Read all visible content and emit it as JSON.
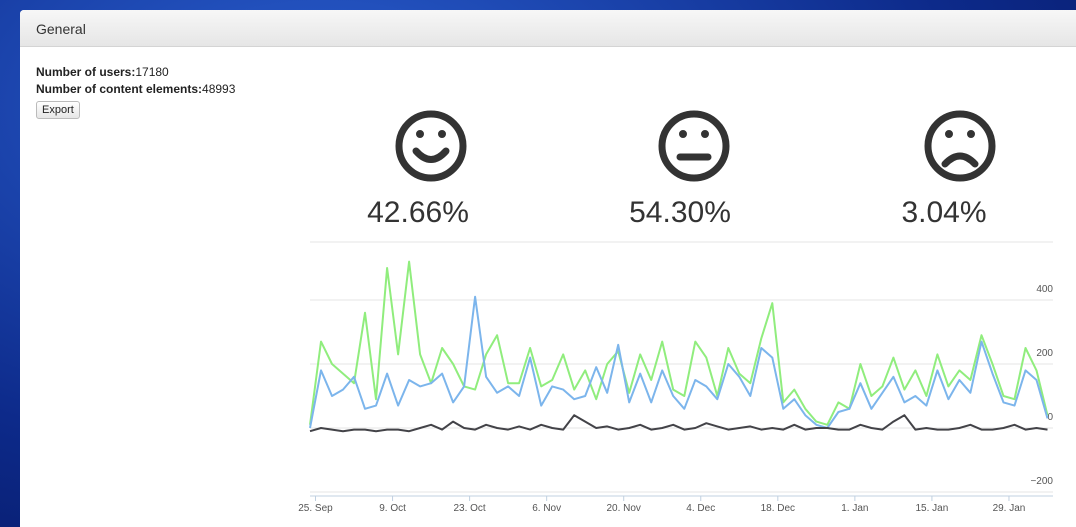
{
  "panel": {
    "title": "General",
    "stats": [
      {
        "label": "Number of users:",
        "value": "17180"
      },
      {
        "label": "Number of content elements:",
        "value": "48993"
      }
    ],
    "button": "Export"
  },
  "sentiment": [
    {
      "percent": "42.66%"
    },
    {
      "percent": "54.30%"
    },
    {
      "percent": "3.04%"
    }
  ],
  "chart_data": {
    "type": "line",
    "x": [
      0,
      2,
      4,
      6,
      8,
      10,
      12,
      14,
      16,
      18,
      20,
      22,
      24,
      26,
      28,
      30,
      32,
      34,
      36,
      38,
      40,
      42,
      44,
      46,
      48,
      50,
      52,
      54,
      56,
      58,
      60,
      62,
      64,
      66,
      68,
      70,
      72,
      74,
      76,
      78,
      80,
      82,
      84,
      86,
      88,
      90,
      92,
      94,
      96,
      98,
      100,
      102,
      104,
      106,
      108,
      110,
      112,
      114,
      116,
      118,
      120,
      122,
      124,
      126,
      128,
      130,
      132,
      134
    ],
    "series": [
      {
        "color": "#90ed7d",
        "values": [
          10,
          270,
          200,
          170,
          140,
          360,
          90,
          500,
          230,
          520,
          230,
          140,
          250,
          200,
          130,
          120,
          230,
          290,
          140,
          140,
          250,
          130,
          150,
          230,
          120,
          180,
          90,
          200,
          240,
          110,
          230,
          150,
          270,
          120,
          100,
          270,
          220,
          100,
          250,
          170,
          140,
          280,
          390,
          80,
          120,
          60,
          20,
          10,
          80,
          60,
          200,
          100,
          130,
          220,
          120,
          180,
          100,
          230,
          130,
          180,
          150,
          290,
          200,
          100,
          90,
          250,
          180,
          40
        ]
      },
      {
        "color": "#7cb5ec",
        "values": [
          0,
          180,
          100,
          120,
          160,
          60,
          70,
          170,
          70,
          150,
          130,
          140,
          170,
          80,
          130,
          410,
          160,
          110,
          130,
          100,
          220,
          70,
          130,
          120,
          90,
          100,
          190,
          110,
          260,
          80,
          170,
          80,
          180,
          100,
          60,
          150,
          130,
          90,
          200,
          160,
          100,
          250,
          220,
          60,
          90,
          40,
          10,
          0,
          50,
          60,
          140,
          60,
          110,
          160,
          80,
          100,
          70,
          180,
          90,
          150,
          110,
          270,
          170,
          80,
          70,
          180,
          150,
          30
        ]
      },
      {
        "color": "#434348",
        "values": [
          -10,
          0,
          -5,
          -10,
          -5,
          -5,
          -10,
          -5,
          -5,
          -10,
          0,
          10,
          -5,
          20,
          0,
          -5,
          10,
          0,
          -5,
          5,
          -5,
          10,
          0,
          -5,
          40,
          20,
          0,
          5,
          -5,
          0,
          10,
          -5,
          0,
          10,
          -5,
          0,
          15,
          5,
          -5,
          0,
          5,
          -5,
          0,
          -5,
          10,
          -5,
          0,
          0,
          -5,
          -5,
          10,
          0,
          -5,
          20,
          40,
          -5,
          0,
          -5,
          -5,
          0,
          10,
          -5,
          -5,
          0,
          10,
          -5,
          0,
          -5
        ]
      }
    ],
    "xlim": [
      0,
      135
    ],
    "xticks": [
      {
        "value": 1,
        "label": "25. Sep"
      },
      {
        "value": 15,
        "label": "9. Oct"
      },
      {
        "value": 29,
        "label": "23. Oct"
      },
      {
        "value": 43,
        "label": "6. Nov"
      },
      {
        "value": 57,
        "label": "20. Nov"
      },
      {
        "value": 71,
        "label": "4. Dec"
      },
      {
        "value": 85,
        "label": "18. Dec"
      },
      {
        "value": 99,
        "label": "1. Jan"
      },
      {
        "value": 113,
        "label": "15. Jan"
      },
      {
        "value": 127,
        "label": "29. Jan"
      }
    ],
    "ylim": [
      -200,
      600
    ],
    "yticks": [
      {
        "value": -200,
        "label": "−200"
      },
      0,
      200,
      400
    ],
    "grid": true
  }
}
